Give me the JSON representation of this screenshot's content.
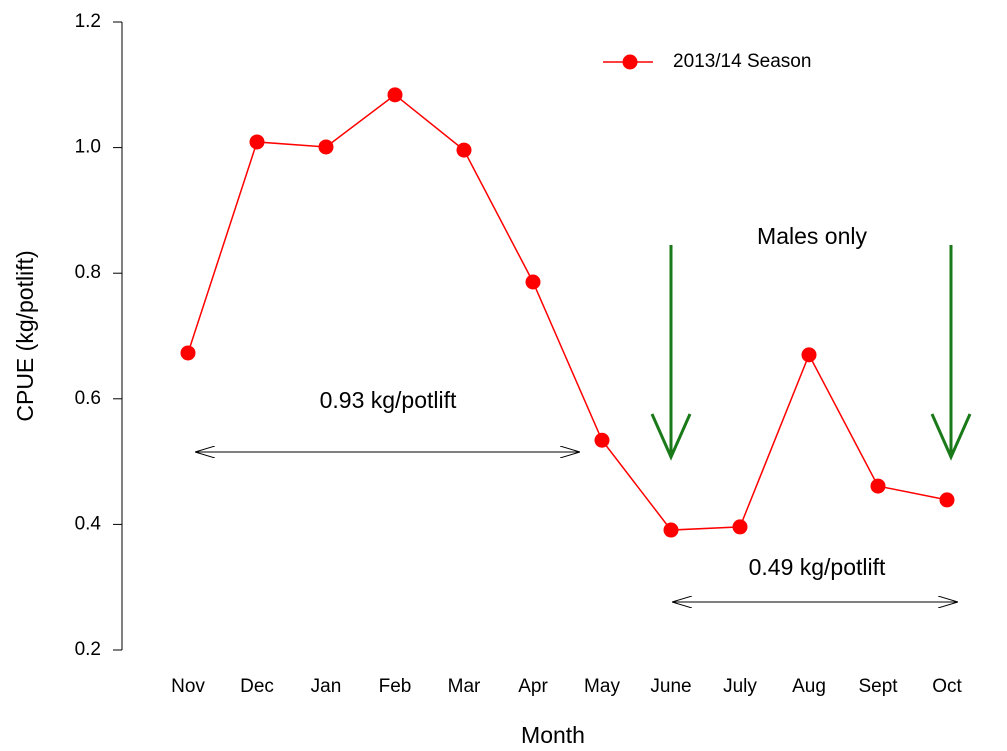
{
  "chart_data": {
    "type": "line",
    "x_label": "Month",
    "y_label": "CPUE (kg/potlift)",
    "categories": [
      "Nov",
      "Dec",
      "Jan",
      "Feb",
      "Mar",
      "Apr",
      "May",
      "June",
      "July",
      "Aug",
      "Sept",
      "Oct"
    ],
    "series": [
      {
        "name": "2013/14 Season",
        "color": "#ff0000",
        "values": [
          0.673,
          1.009,
          1.001,
          1.084,
          0.996,
          0.786,
          0.534,
          0.391,
          0.396,
          0.67,
          0.461,
          0.439
        ]
      }
    ],
    "ylim": [
      0.2,
      1.2
    ],
    "yticks": [
      0.2,
      0.4,
      0.6,
      0.8,
      {
        "value": 1,
        "label": "1.0"
      },
      1.2
    ],
    "legend": "upper right",
    "annotations": [
      "0.93 kg/potlift",
      "0.49 kg/potlift",
      "Males only"
    ]
  }
}
